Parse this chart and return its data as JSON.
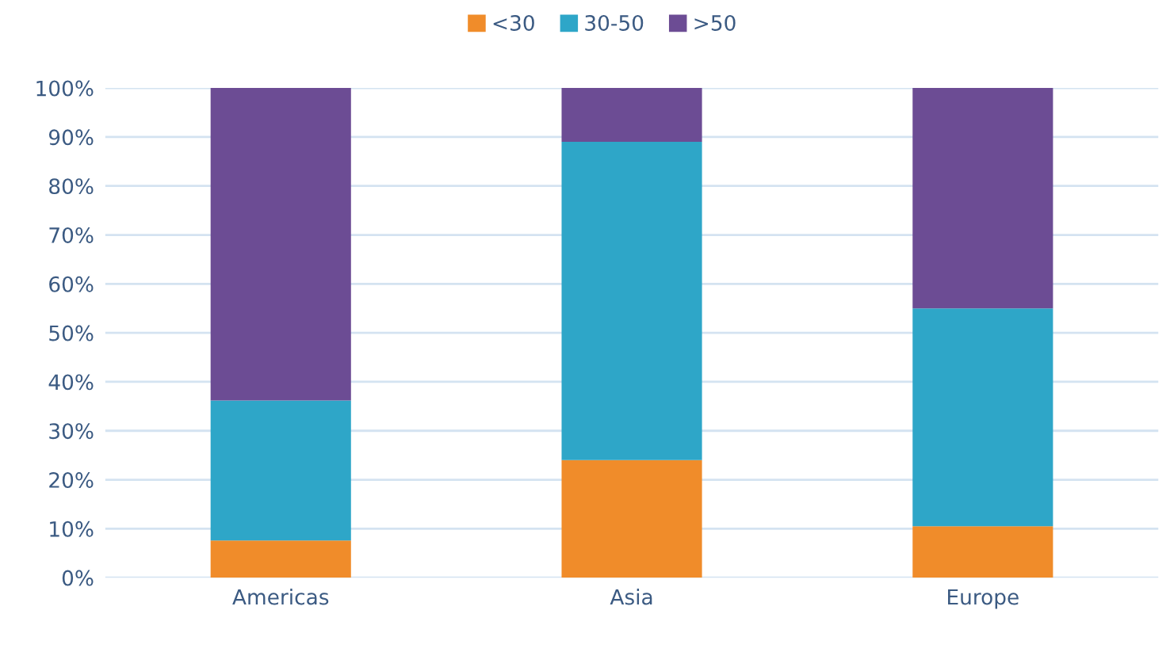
{
  "chart_data": {
    "type": "bar",
    "stacked": true,
    "categories": [
      "Americas",
      "Asia",
      "Europe"
    ],
    "series": [
      {
        "name": "<30",
        "color": "#f08c2a",
        "values": [
          7.6,
          24,
          10.5
        ]
      },
      {
        "name": "30-50",
        "color": "#2ea6c8",
        "values": [
          28.6,
          65,
          44.5
        ]
      },
      {
        "name": ">50",
        "color": "#6c4c94",
        "values": [
          63.8,
          11,
          45
        ]
      }
    ],
    "ylim": [
      0,
      100
    ],
    "yticks": [
      {
        "value": 0,
        "label": "0%"
      },
      {
        "value": 10,
        "label": "10%"
      },
      {
        "value": 20,
        "label": "20%"
      },
      {
        "value": 30,
        "label": "30%"
      },
      {
        "value": 40,
        "label": "40%"
      },
      {
        "value": 50,
        "label": "50%"
      },
      {
        "value": 60,
        "label": "60%"
      },
      {
        "value": 70,
        "label": "70%"
      },
      {
        "value": 80,
        "label": "80%"
      },
      {
        "value": 90,
        "label": "90%"
      },
      {
        "value": 100,
        "label": "100%"
      }
    ],
    "grid": "y",
    "legend": "top"
  }
}
